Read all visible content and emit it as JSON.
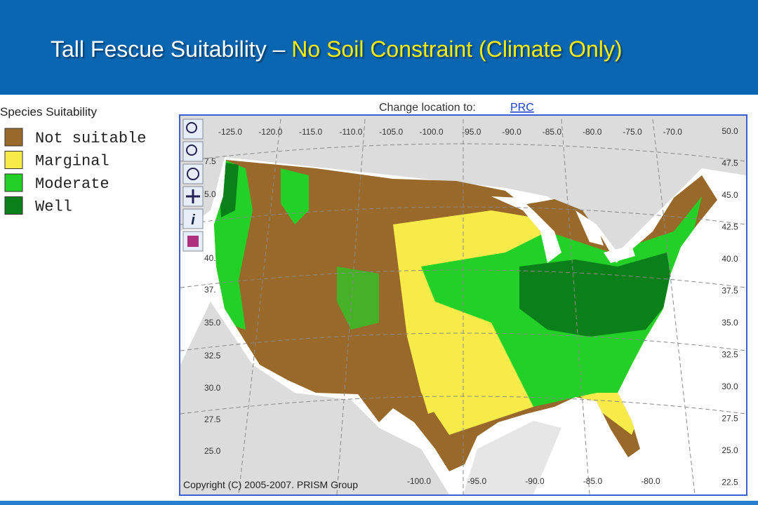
{
  "header": {
    "title_main": "Tall Fescue Suitability –",
    "title_highlight": "No Soil Constraint (Climate Only)"
  },
  "legend": {
    "title": "Species Suitability",
    "items": [
      {
        "label": "Not suitable",
        "color": "#98692a"
      },
      {
        "label": "Marginal",
        "color": "#f7eb4a"
      },
      {
        "label": "Moderate",
        "color": "#22d027"
      },
      {
        "label": "Well",
        "color": "#0b7f1a"
      }
    ]
  },
  "map": {
    "change_location_label": "Change location to:",
    "location_link": "PRC",
    "copyright": "Copyright (C) 2005-2007. PRISM Group",
    "lon_labels_top": [
      "-125.0",
      "-120.0",
      "-115.0",
      "-110.0",
      "-105.0",
      "-100.0",
      "-95.0",
      "-90.0",
      "-85.0",
      "-80.0",
      "-75.0",
      "-70.0"
    ],
    "lon_labels_bottom": [
      "-100.0",
      "-95.0",
      "-90.0",
      "-85.0",
      "-80.0"
    ],
    "lat_labels_right": [
      "50.0",
      "47.5",
      "45.0",
      "42.5",
      "40.0",
      "37.5",
      "35.0",
      "32.5",
      "30.0",
      "27.5",
      "25.0",
      "22.5"
    ],
    "lat_labels_left": [
      "7.5",
      "5.0",
      "40.",
      "37.",
      "35.0",
      "32.5",
      "30.0",
      "27.5",
      "25.0"
    ]
  }
}
